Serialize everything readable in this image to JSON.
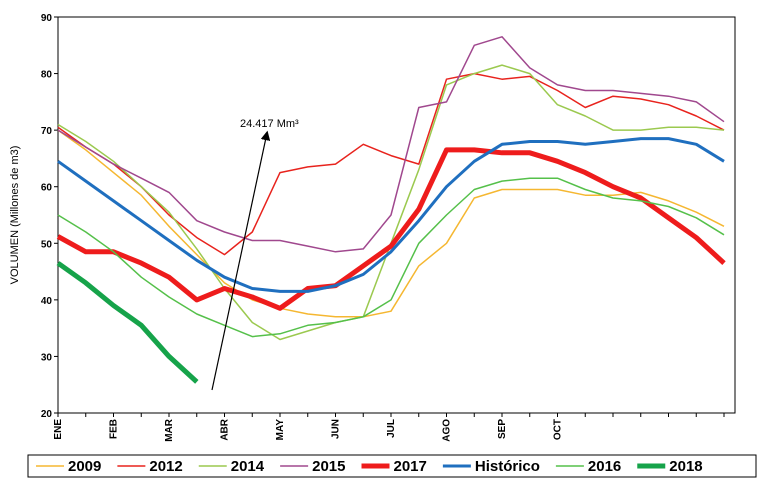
{
  "chart_data": {
    "type": "line",
    "y_label": "VOLUMEN (Millones de m3)",
    "annotation": "24.417 Mm³",
    "categories": [
      "ENE",
      null,
      "FEB",
      null,
      "MAR",
      null,
      "ABR",
      null,
      "MAY",
      null,
      "JUN",
      null,
      "JUL",
      null,
      "AGO",
      null,
      "SEP",
      null,
      "OCT",
      null,
      null,
      null,
      null,
      null,
      null
    ],
    "ylim": [
      20,
      90
    ],
    "yticks": [
      20,
      30,
      40,
      50,
      60,
      70,
      80,
      90
    ],
    "grid": false,
    "legend": "bottom",
    "series": [
      {
        "name": "2009",
        "color": "#f5b731",
        "width": 1.5,
        "values": [
          70,
          66.5,
          62.5,
          58.5,
          53,
          48,
          43,
          40,
          38.5,
          37.5,
          37,
          37,
          38,
          46,
          50,
          58,
          59.5,
          59.5,
          59.5,
          58.5,
          58.5,
          59,
          57.5,
          55.5,
          53
        ]
      },
      {
        "name": "2012",
        "color": "#e8231d",
        "width": 1.5,
        "values": [
          70.5,
          67,
          64,
          60,
          55,
          51,
          48,
          52,
          62.5,
          63.5,
          64,
          67.5,
          65.5,
          64,
          79,
          80,
          79,
          79.5,
          77,
          74,
          76,
          75.5,
          74.5,
          72.5,
          70
        ]
      },
      {
        "name": "2014",
        "color": "#9bc94f",
        "width": 1.5,
        "values": [
          71,
          68,
          64.5,
          60,
          55.5,
          49,
          42,
          36,
          33,
          34.5,
          36,
          37,
          50,
          63,
          78,
          80,
          81.5,
          80,
          74.5,
          72.5,
          70,
          70,
          70.5,
          70.5,
          70
        ]
      },
      {
        "name": "2015",
        "color": "#a0488e",
        "width": 1.5,
        "values": [
          70,
          67,
          64,
          61.5,
          59,
          54,
          52,
          50.5,
          50.5,
          49.5,
          48.5,
          49,
          55,
          74,
          75,
          85,
          86.5,
          81,
          78,
          77,
          77,
          76.5,
          76,
          75,
          71.5
        ]
      },
      {
        "name": "2017",
        "color": "#ee1c1c",
        "width": 5,
        "values": [
          51.2,
          48.5,
          48.5,
          46.5,
          44,
          40,
          42,
          40.5,
          38.5,
          42,
          42.5,
          46,
          49.5,
          56,
          66.5,
          66.5,
          66,
          66,
          64.5,
          62.5,
          60,
          58,
          54.5,
          51,
          46.5
        ]
      },
      {
        "name": "Histórico",
        "color": "#1f6fbf",
        "width": 3,
        "values": [
          64.5,
          61,
          57.5,
          54,
          50.5,
          47,
          44,
          42,
          41.5,
          41.5,
          42.5,
          44.5,
          48.5,
          54,
          60,
          64.5,
          67.5,
          68,
          68,
          67.5,
          68,
          68.5,
          68.5,
          67.5,
          64.5
        ]
      },
      {
        "name": "2016",
        "color": "#55c04a",
        "width": 1.5,
        "values": [
          55,
          52,
          48.5,
          44,
          40.5,
          37.5,
          35.5,
          33.5,
          34,
          35.5,
          36,
          37,
          40,
          50,
          55,
          59.5,
          61,
          61.5,
          61.5,
          59.5,
          58,
          57.5,
          56.5,
          54.5,
          51.5
        ]
      },
      {
        "name": "2018",
        "color": "#16a34a",
        "width": 5,
        "values": [
          46.5,
          43,
          39,
          35.5,
          30,
          25.5,
          null,
          null,
          null,
          null,
          null,
          null,
          null,
          null,
          null,
          null,
          null,
          null,
          null,
          null,
          null,
          null,
          null,
          null,
          null
        ]
      }
    ]
  }
}
